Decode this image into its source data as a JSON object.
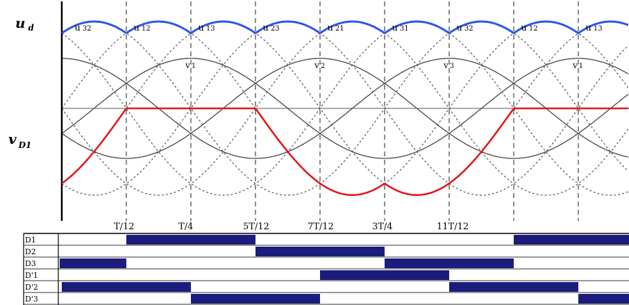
{
  "chart_data": {
    "type": "line",
    "y_labels": {
      "ud": "u",
      "ud_sub": "d",
      "vd1": "v",
      "vd1_sub": "D1"
    },
    "segment_labels": [
      {
        "base": "u",
        "sub": "32"
      },
      {
        "base": "u",
        "sub": "12"
      },
      {
        "base": "u",
        "sub": "13"
      },
      {
        "base": "u",
        "sub": "23"
      },
      {
        "base": "u",
        "sub": "21"
      },
      {
        "base": "u",
        "sub": "31"
      },
      {
        "base": "u",
        "sub": "32"
      },
      {
        "base": "u",
        "sub": "12"
      },
      {
        "base": "u",
        "sub": "13"
      }
    ],
    "phase_labels": [
      {
        "base": "v",
        "sub": "1"
      },
      {
        "base": "v",
        "sub": "2"
      },
      {
        "base": "v",
        "sub": "3"
      },
      {
        "base": "v",
        "sub": "1"
      }
    ],
    "tick_labels": [
      "T/12",
      "T/4",
      "5T/12",
      "7T/12",
      "3T/4",
      "11T/12"
    ],
    "period_span_T": [
      0,
      1.4
    ],
    "conduction": {
      "rows": [
        "D1",
        "D2",
        "D3",
        "D'1",
        "D'2",
        "D'3"
      ],
      "intervals": [
        [
          [
            0.0833,
            0.4167
          ],
          [
            1.0833,
            1.4167
          ]
        ],
        [
          [
            0.4167,
            0.75
          ],
          [
            1.4167,
            1.75
          ]
        ],
        [
          [
            -0.25,
            0.0833
          ],
          [
            0.75,
            1.0833
          ]
        ],
        [
          [
            0.5833,
            0.9167
          ]
        ],
        [
          [
            -0.0833,
            0.25
          ],
          [
            0.9167,
            1.25
          ]
        ],
        [
          [
            0.25,
            0.5833
          ],
          [
            1.25,
            1.5833
          ]
        ]
      ]
    }
  }
}
